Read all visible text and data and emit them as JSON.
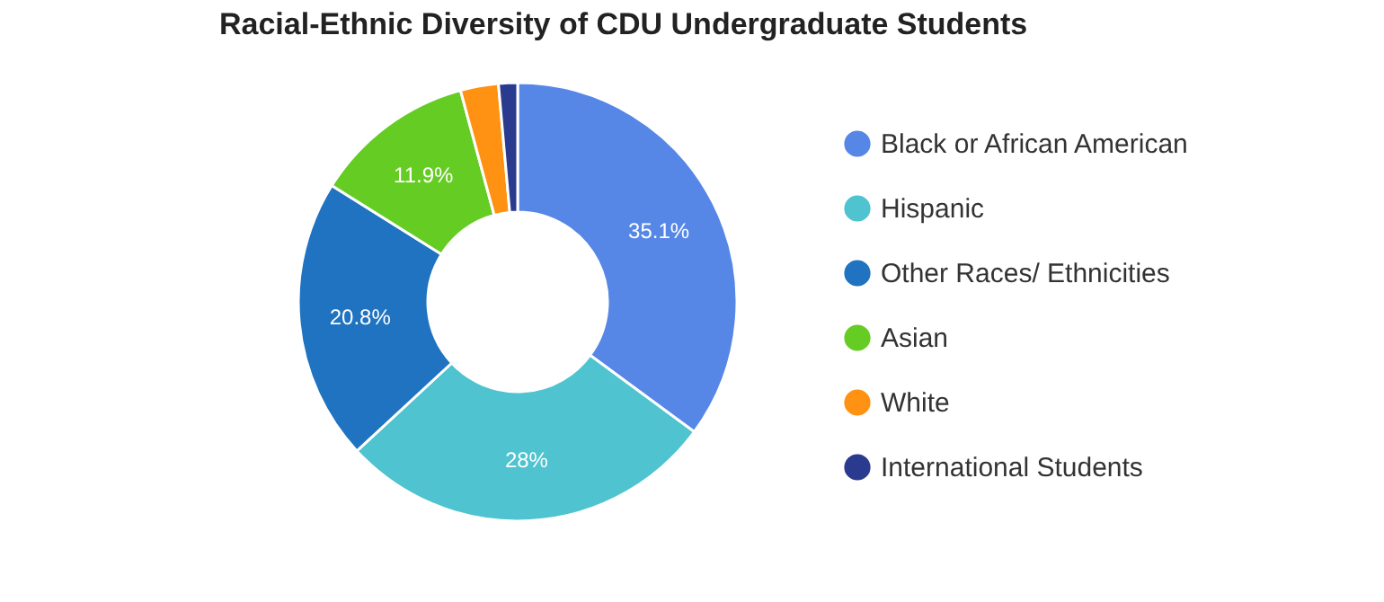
{
  "chart_data": {
    "type": "donut",
    "title": "Racial-Ethnic Diversity of CDU Undergraduate Students",
    "categories": [
      "Black or African American",
      "Hispanic",
      "Other Races/ Ethnicities",
      "Asian",
      "White",
      "International Students"
    ],
    "values": [
      35.1,
      28,
      20.8,
      11.9,
      2.8,
      1.4
    ],
    "value_labels": [
      "35.1%",
      "28%",
      "20.8%",
      "11.9%",
      null,
      null
    ],
    "colors": [
      "#5687e6",
      "#4fc3cf",
      "#1f73c0",
      "#65cc24",
      "#ff9212",
      "#2a3a8f"
    ],
    "legend": "right"
  }
}
